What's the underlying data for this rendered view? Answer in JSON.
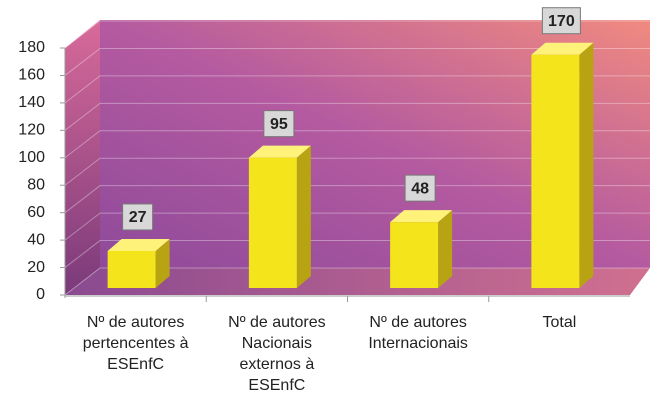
{
  "chart_data": {
    "type": "bar",
    "categories": [
      "Nº de autores pertencentes à ESEnfC",
      "Nº de autores Nacionais externos à ESEnfC",
      "Nº de autores Internacionais",
      "Total"
    ],
    "values": [
      27,
      95,
      48,
      170
    ],
    "color": "#f4e41c",
    "ylim": [
      0,
      180
    ],
    "yticks": [
      0,
      20,
      40,
      60,
      80,
      100,
      120,
      140,
      160,
      180
    ],
    "grid": true
  }
}
